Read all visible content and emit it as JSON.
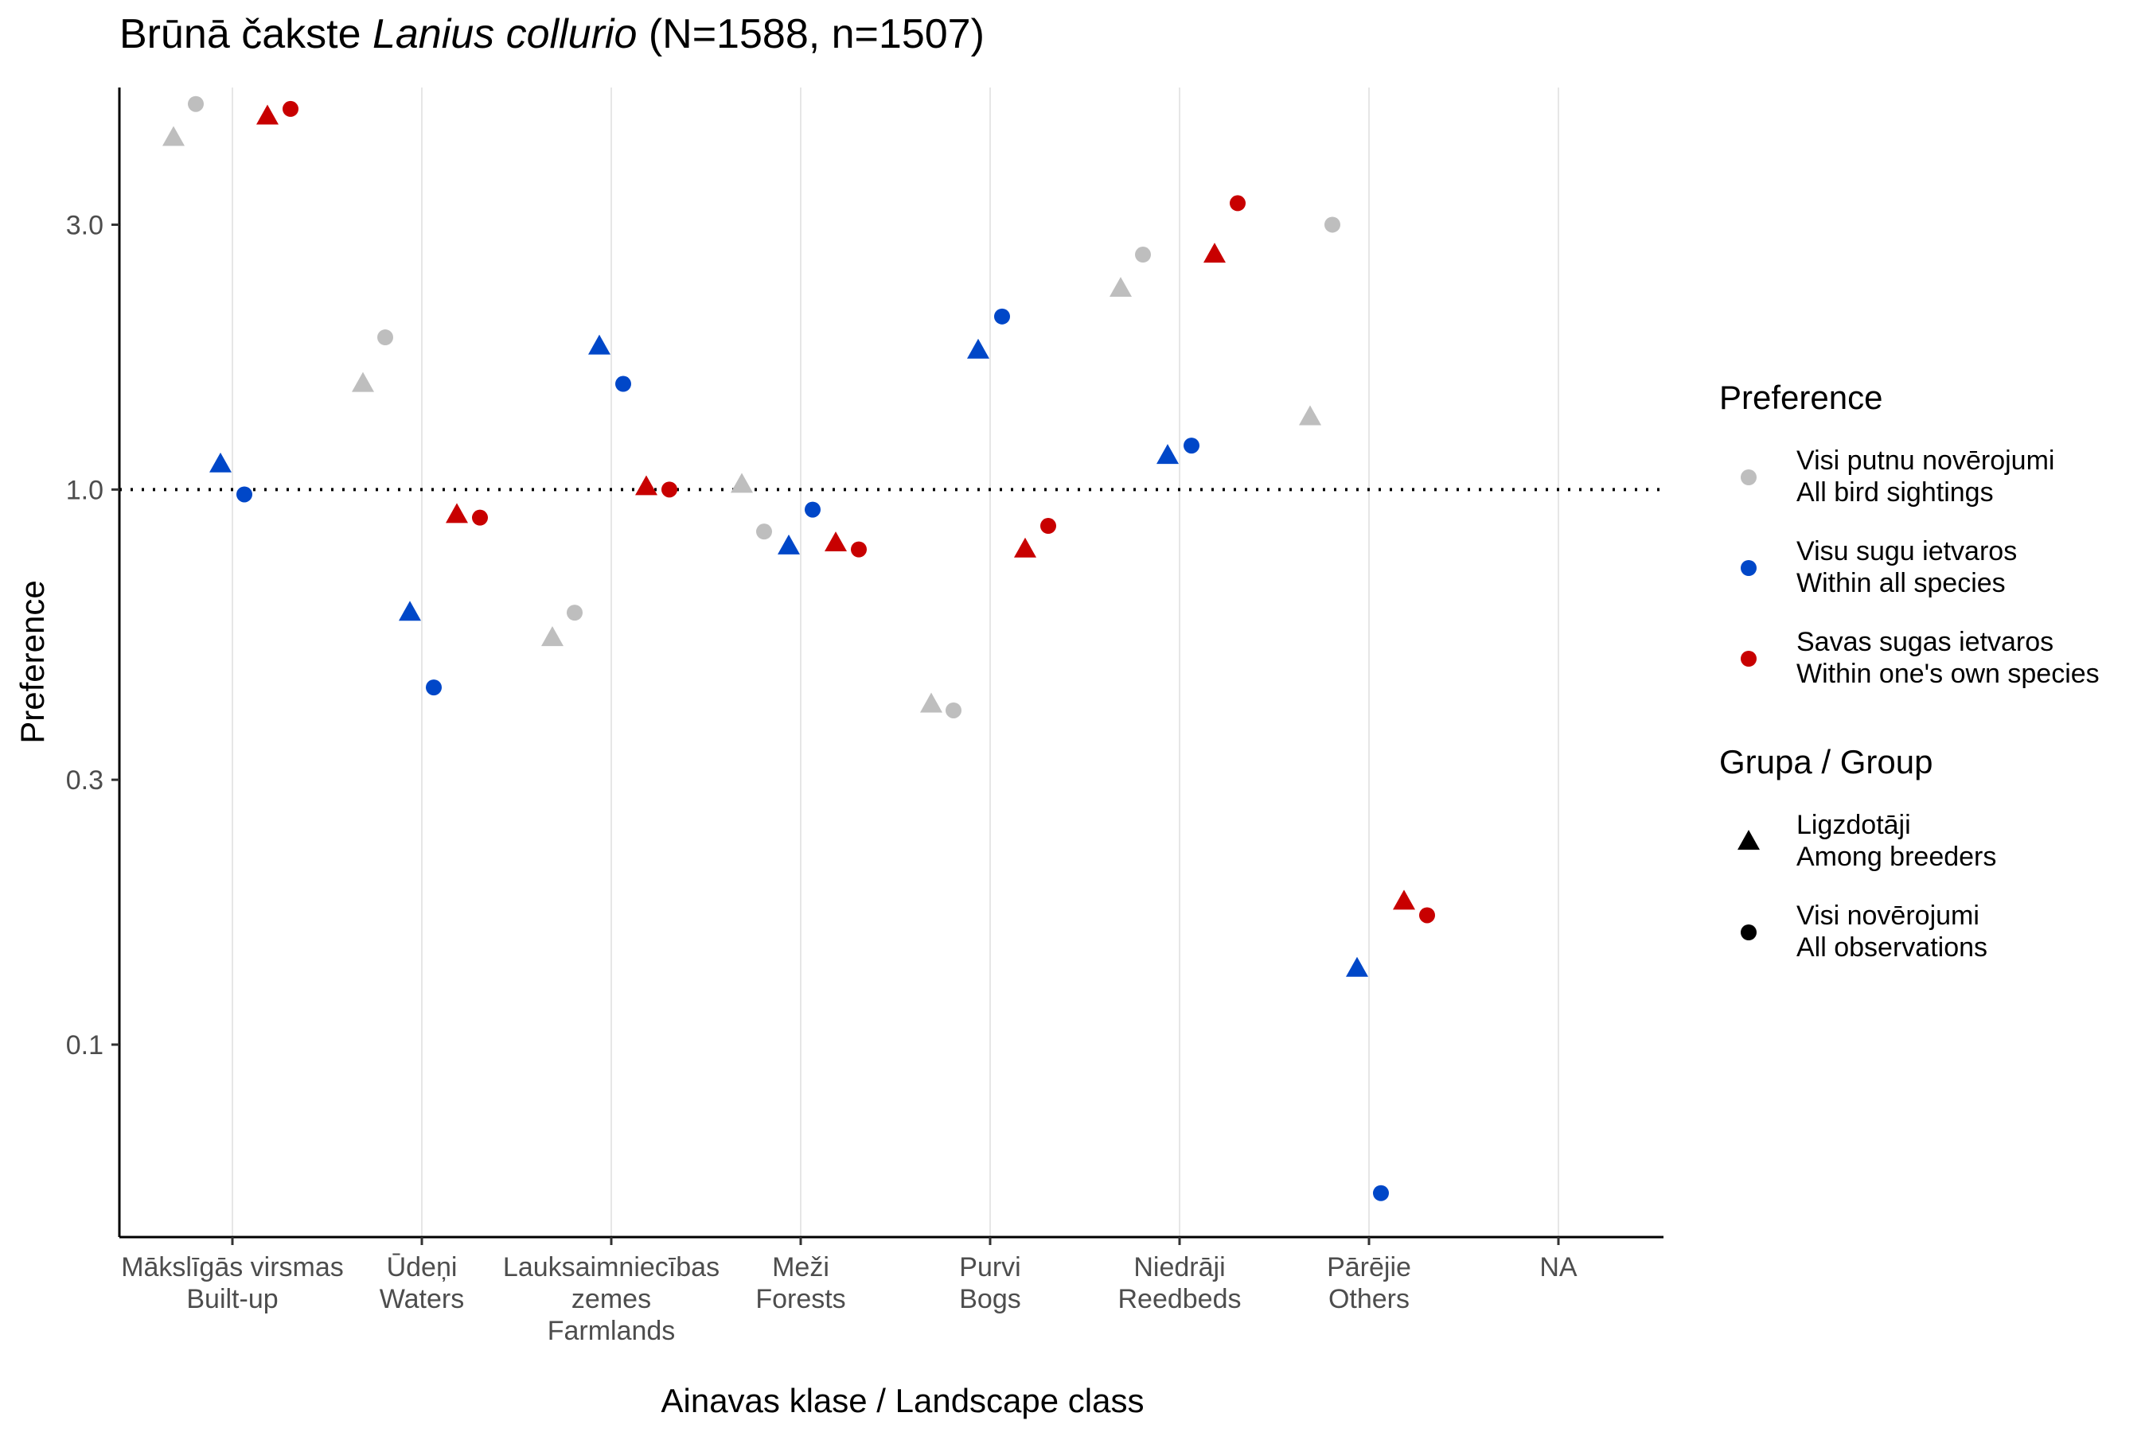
{
  "chart_data": {
    "type": "scatter",
    "title": {
      "prefix": "Brūnā čakste ",
      "species": "Lanius collurio",
      "suffix": " (N=1588, n=1507)"
    },
    "xlabel": "Ainavas klase / Landscape class",
    "ylabel": "Preference",
    "y_scale": "log",
    "ylim": [
      0.045,
      5.3
    ],
    "y_ticks": [
      {
        "value": 0.1,
        "label": "0.1"
      },
      {
        "value": 0.3,
        "label": "0.3"
      },
      {
        "value": 1.0,
        "label": "1.0"
      },
      {
        "value": 3.0,
        "label": "3.0"
      }
    ],
    "reference_line": {
      "value": 1.0,
      "style": "dotted"
    },
    "grid": {
      "vertical": true,
      "horizontal": false
    },
    "categories": [
      {
        "key": "builtup",
        "lines": [
          "Mākslīgās virsmas",
          "Built-up"
        ]
      },
      {
        "key": "waters",
        "lines": [
          "Ūdeņi",
          "Waters"
        ]
      },
      {
        "key": "farmlands",
        "lines": [
          "Lauksaimniecības",
          "zemes",
          "Farmlands"
        ]
      },
      {
        "key": "forests",
        "lines": [
          "Meži",
          "Forests"
        ]
      },
      {
        "key": "bogs",
        "lines": [
          "Purvi",
          "Bogs"
        ]
      },
      {
        "key": "reedbeds",
        "lines": [
          "Niedrāji",
          "Reedbeds"
        ]
      },
      {
        "key": "others",
        "lines": [
          "Pārējie",
          "Others"
        ]
      },
      {
        "key": "na",
        "lines": [
          "NA"
        ]
      }
    ],
    "legend": {
      "placement": "right",
      "preference": {
        "title": "Preference",
        "items": [
          {
            "key": "all_birds",
            "color": "#bebebe",
            "lines": [
              "Visi putnu novērojumi",
              "All bird sightings"
            ]
          },
          {
            "key": "all_species",
            "color": "#0047c8",
            "lines": [
              "Visu sugu ietvaros",
              "Within all species"
            ]
          },
          {
            "key": "own_species",
            "color": "#c80000",
            "lines": [
              "Savas sugas ietvaros",
              "Within one's own species"
            ]
          }
        ]
      },
      "group": {
        "title": "Grupa / Group",
        "items": [
          {
            "key": "breeders",
            "shape": "triangle",
            "lines": [
              "Ligzdotāji",
              "Among breeders"
            ]
          },
          {
            "key": "all_obs",
            "shape": "circle",
            "lines": [
              "Visi novērojumi",
              "All observations"
            ]
          }
        ]
      }
    },
    "points": [
      {
        "category": "builtup",
        "preference": "all_birds",
        "group": "breeders",
        "value": 4.3
      },
      {
        "category": "builtup",
        "preference": "all_birds",
        "group": "all_obs",
        "value": 4.95
      },
      {
        "category": "builtup",
        "preference": "all_species",
        "group": "breeders",
        "value": 1.11
      },
      {
        "category": "builtup",
        "preference": "all_species",
        "group": "all_obs",
        "value": 0.98
      },
      {
        "category": "builtup",
        "preference": "own_species",
        "group": "breeders",
        "value": 4.7
      },
      {
        "category": "builtup",
        "preference": "own_species",
        "group": "all_obs",
        "value": 4.85
      },
      {
        "category": "waters",
        "preference": "all_birds",
        "group": "breeders",
        "value": 1.55
      },
      {
        "category": "waters",
        "preference": "all_birds",
        "group": "all_obs",
        "value": 1.88
      },
      {
        "category": "waters",
        "preference": "all_species",
        "group": "breeders",
        "value": 0.6
      },
      {
        "category": "waters",
        "preference": "all_species",
        "group": "all_obs",
        "value": 0.44
      },
      {
        "category": "waters",
        "preference": "own_species",
        "group": "breeders",
        "value": 0.9
      },
      {
        "category": "waters",
        "preference": "own_species",
        "group": "all_obs",
        "value": 0.89
      },
      {
        "category": "farmlands",
        "preference": "all_birds",
        "group": "breeders",
        "value": 0.54
      },
      {
        "category": "farmlands",
        "preference": "all_birds",
        "group": "all_obs",
        "value": 0.6
      },
      {
        "category": "farmlands",
        "preference": "all_species",
        "group": "breeders",
        "value": 1.81
      },
      {
        "category": "farmlands",
        "preference": "all_species",
        "group": "all_obs",
        "value": 1.55
      },
      {
        "category": "farmlands",
        "preference": "own_species",
        "group": "breeders",
        "value": 1.01
      },
      {
        "category": "farmlands",
        "preference": "own_species",
        "group": "all_obs",
        "value": 1.0
      },
      {
        "category": "forests",
        "preference": "all_birds",
        "group": "breeders",
        "value": 1.02
      },
      {
        "category": "forests",
        "preference": "all_birds",
        "group": "all_obs",
        "value": 0.84
      },
      {
        "category": "forests",
        "preference": "all_species",
        "group": "breeders",
        "value": 0.79
      },
      {
        "category": "forests",
        "preference": "all_species",
        "group": "all_obs",
        "value": 0.92
      },
      {
        "category": "forests",
        "preference": "own_species",
        "group": "breeders",
        "value": 0.8
      },
      {
        "category": "forests",
        "preference": "own_species",
        "group": "all_obs",
        "value": 0.78
      },
      {
        "category": "bogs",
        "preference": "all_birds",
        "group": "breeders",
        "value": 0.41
      },
      {
        "category": "bogs",
        "preference": "all_birds",
        "group": "all_obs",
        "value": 0.4
      },
      {
        "category": "bogs",
        "preference": "all_species",
        "group": "breeders",
        "value": 1.78
      },
      {
        "category": "bogs",
        "preference": "all_species",
        "group": "all_obs",
        "value": 2.05
      },
      {
        "category": "bogs",
        "preference": "own_species",
        "group": "breeders",
        "value": 0.78
      },
      {
        "category": "bogs",
        "preference": "own_species",
        "group": "all_obs",
        "value": 0.86
      },
      {
        "category": "reedbeds",
        "preference": "all_birds",
        "group": "breeders",
        "value": 2.3
      },
      {
        "category": "reedbeds",
        "preference": "all_birds",
        "group": "all_obs",
        "value": 2.65
      },
      {
        "category": "reedbeds",
        "preference": "all_species",
        "group": "breeders",
        "value": 1.15
      },
      {
        "category": "reedbeds",
        "preference": "all_species",
        "group": "all_obs",
        "value": 1.2
      },
      {
        "category": "reedbeds",
        "preference": "own_species",
        "group": "breeders",
        "value": 2.65
      },
      {
        "category": "reedbeds",
        "preference": "own_species",
        "group": "all_obs",
        "value": 3.28
      },
      {
        "category": "others",
        "preference": "all_birds",
        "group": "breeders",
        "value": 1.35
      },
      {
        "category": "others",
        "preference": "all_birds",
        "group": "all_obs",
        "value": 3.0
      },
      {
        "category": "others",
        "preference": "all_species",
        "group": "breeders",
        "value": 0.137
      },
      {
        "category": "others",
        "preference": "all_species",
        "group": "all_obs",
        "value": 0.054
      },
      {
        "category": "others",
        "preference": "own_species",
        "group": "breeders",
        "value": 0.181
      },
      {
        "category": "others",
        "preference": "own_species",
        "group": "all_obs",
        "value": 0.171
      }
    ]
  }
}
